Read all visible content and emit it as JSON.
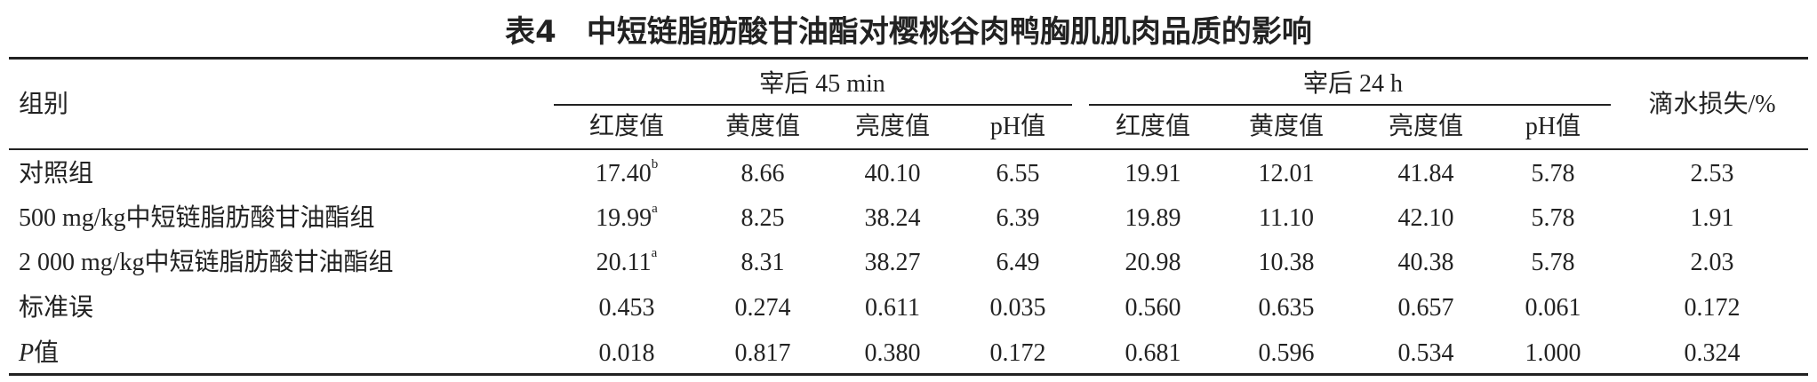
{
  "title": "表4　中短链脂肪酸甘油酯对樱桃谷肉鸭胸肌肌肉品质的影响",
  "table": {
    "header": {
      "group": "组别",
      "period_1": "宰后 45 min",
      "period_2": "宰后 24 h",
      "drip": "滴水损失/%",
      "sub": [
        "红度值",
        "黄度值",
        "亮度值",
        "pH值",
        "红度值",
        "黄度值",
        "亮度值",
        "pH值"
      ]
    },
    "rows": [
      {
        "label": "对照组",
        "cells": [
          {
            "text": "17.40",
            "sup": "b"
          },
          "8.66",
          "40.10",
          "6.55",
          "19.91",
          "12.01",
          "41.84",
          "5.78",
          "2.53"
        ]
      },
      {
        "label": "500 mg/kg中短链脂肪酸甘油酯组",
        "cells": [
          {
            "text": "19.99",
            "sup": "a"
          },
          "8.25",
          "38.24",
          "6.39",
          "19.89",
          "11.10",
          "42.10",
          "5.78",
          "1.91"
        ]
      },
      {
        "label": "2 000 mg/kg中短链脂肪酸甘油酯组",
        "cells": [
          {
            "text": "20.11",
            "sup": "a"
          },
          "8.31",
          "38.27",
          "6.49",
          "20.98",
          "10.38",
          "40.38",
          "5.78",
          "2.03"
        ]
      },
      {
        "label": "标准误",
        "cells": [
          "0.453",
          "0.274",
          "0.611",
          "0.035",
          "0.560",
          "0.635",
          "0.657",
          "0.061",
          "0.172"
        ]
      },
      {
        "label": {
          "italic": "P",
          "text": "值"
        },
        "cells": [
          "0.018",
          "0.817",
          "0.380",
          "0.172",
          "0.681",
          "0.596",
          "0.534",
          "1.000",
          "0.324"
        ]
      }
    ]
  }
}
